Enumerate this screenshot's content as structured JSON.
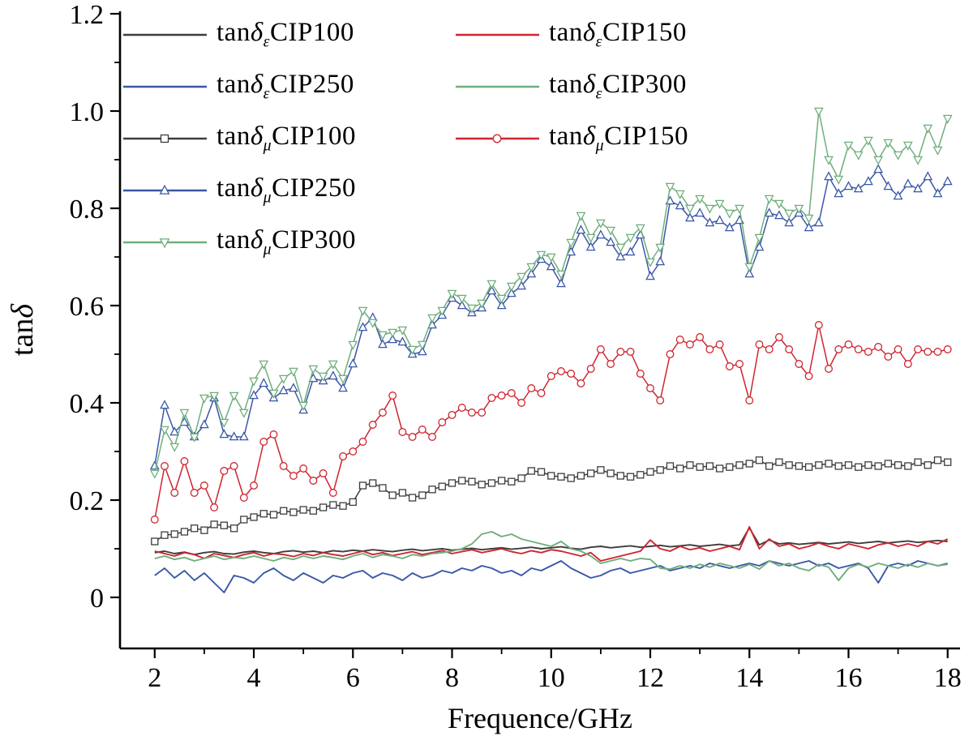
{
  "chart_data": {
    "type": "line",
    "title": "",
    "xlabel": "Frequence/GHz",
    "ylabel_prefix": "tan",
    "ylabel_symbol": "δ",
    "legend_prefix": "tan",
    "legend_position": "top-left",
    "grid": false,
    "x_start": 2,
    "x_step": 0.2,
    "xlim": [
      1.3,
      18.25
    ],
    "ylim": [
      -0.105,
      1.205
    ],
    "xticks": [
      2,
      4,
      6,
      8,
      10,
      12,
      14,
      16,
      18
    ],
    "yticks": [
      0,
      0.2,
      0.4,
      0.6,
      0.8,
      1.0,
      1.2
    ],
    "ytick_labels": [
      "0",
      "0.2",
      "0.4",
      "0.6",
      "0.8",
      "1.0",
      "1.2"
    ],
    "axis_color": "#000000",
    "series": [
      {
        "id": "eps-cip100",
        "delta": "δ",
        "sub": "ε",
        "name": "CIP100",
        "color": "#3d3d3d",
        "marker": "none",
        "values": [
          0.092,
          0.095,
          0.09,
          0.093,
          0.088,
          0.092,
          0.094,
          0.09,
          0.089,
          0.093,
          0.095,
          0.092,
          0.09,
          0.094,
          0.096,
          0.093,
          0.095,
          0.092,
          0.096,
          0.094,
          0.097,
          0.095,
          0.098,
          0.096,
          0.094,
          0.097,
          0.099,
          0.096,
          0.098,
          0.1,
          0.097,
          0.099,
          0.101,
          0.098,
          0.1,
          0.102,
          0.099,
          0.101,
          0.103,
          0.1,
          0.102,
          0.104,
          0.101,
          0.099,
          0.103,
          0.105,
          0.102,
          0.104,
          0.106,
          0.103,
          0.105,
          0.107,
          0.104,
          0.106,
          0.108,
          0.105,
          0.107,
          0.109,
          0.106,
          0.108,
          0.143,
          0.108,
          0.118,
          0.11,
          0.112,
          0.109,
          0.111,
          0.113,
          0.11,
          0.112,
          0.114,
          0.111,
          0.113,
          0.115,
          0.112,
          0.114,
          0.116,
          0.113,
          0.115,
          0.117,
          0.115
        ]
      },
      {
        "id": "eps-cip150",
        "delta": "δ",
        "sub": "ε",
        "name": "CIP150",
        "color": "#cf2530",
        "marker": "none",
        "values": [
          0.095,
          0.09,
          0.085,
          0.092,
          0.088,
          0.08,
          0.09,
          0.086,
          0.082,
          0.088,
          0.092,
          0.085,
          0.09,
          0.088,
          0.084,
          0.09,
          0.086,
          0.092,
          0.088,
          0.085,
          0.09,
          0.095,
          0.088,
          0.092,
          0.086,
          0.09,
          0.094,
          0.088,
          0.092,
          0.096,
          0.09,
          0.094,
          0.098,
          0.092,
          0.096,
          0.1,
          0.094,
          0.09,
          0.096,
          0.092,
          0.098,
          0.095,
          0.09,
          0.085,
          0.092,
          0.075,
          0.08,
          0.085,
          0.09,
          0.095,
          0.118,
          0.1,
          0.095,
          0.105,
          0.098,
          0.102,
          0.095,
          0.1,
          0.105,
          0.098,
          0.145,
          0.1,
          0.12,
          0.105,
          0.11,
          0.1,
          0.105,
          0.112,
          0.105,
          0.1,
          0.11,
          0.105,
          0.1,
          0.108,
          0.112,
          0.105,
          0.11,
          0.105,
          0.115,
          0.11,
          0.12
        ]
      },
      {
        "id": "eps-cip250",
        "delta": "δ",
        "sub": "ε",
        "name": "CIP250",
        "color": "#3a57a7",
        "marker": "none",
        "values": [
          0.045,
          0.06,
          0.04,
          0.055,
          0.035,
          0.05,
          0.03,
          0.01,
          0.045,
          0.04,
          0.03,
          0.05,
          0.06,
          0.045,
          0.035,
          0.05,
          0.04,
          0.03,
          0.045,
          0.04,
          0.05,
          0.055,
          0.04,
          0.05,
          0.045,
          0.035,
          0.05,
          0.04,
          0.045,
          0.055,
          0.05,
          0.06,
          0.055,
          0.065,
          0.06,
          0.05,
          0.055,
          0.045,
          0.06,
          0.055,
          0.065,
          0.075,
          0.06,
          0.05,
          0.04,
          0.045,
          0.055,
          0.06,
          0.05,
          0.055,
          0.06,
          0.065,
          0.055,
          0.06,
          0.065,
          0.06,
          0.07,
          0.065,
          0.06,
          0.065,
          0.07,
          0.065,
          0.075,
          0.07,
          0.065,
          0.07,
          0.075,
          0.065,
          0.07,
          0.06,
          0.065,
          0.07,
          0.06,
          0.03,
          0.065,
          0.07,
          0.065,
          0.075,
          0.07,
          0.065,
          0.07
        ]
      },
      {
        "id": "eps-cip300",
        "delta": "δ",
        "sub": "ε",
        "name": "CIP300",
        "color": "#6fae7c",
        "marker": "none",
        "values": [
          0.08,
          0.085,
          0.078,
          0.082,
          0.075,
          0.08,
          0.085,
          0.078,
          0.082,
          0.08,
          0.085,
          0.08,
          0.075,
          0.082,
          0.078,
          0.085,
          0.08,
          0.085,
          0.082,
          0.078,
          0.085,
          0.09,
          0.082,
          0.088,
          0.085,
          0.08,
          0.088,
          0.085,
          0.09,
          0.092,
          0.095,
          0.1,
          0.11,
          0.13,
          0.135,
          0.125,
          0.13,
          0.12,
          0.115,
          0.11,
          0.105,
          0.115,
          0.1,
          0.095,
          0.085,
          0.07,
          0.075,
          0.08,
          0.075,
          0.08,
          0.078,
          0.06,
          0.058,
          0.065,
          0.06,
          0.068,
          0.062,
          0.07,
          0.065,
          0.06,
          0.068,
          0.058,
          0.075,
          0.065,
          0.07,
          0.06,
          0.055,
          0.068,
          0.062,
          0.035,
          0.06,
          0.068,
          0.062,
          0.07,
          0.065,
          0.06,
          0.068,
          0.062,
          0.07,
          0.065,
          0.068
        ]
      },
      {
        "id": "mu-cip100",
        "delta": "δ",
        "sub": "μ",
        "name": "CIP100",
        "color": "#3d3d3d",
        "marker": "square",
        "values": [
          0.115,
          0.128,
          0.13,
          0.135,
          0.142,
          0.138,
          0.15,
          0.148,
          0.142,
          0.16,
          0.165,
          0.172,
          0.17,
          0.178,
          0.175,
          0.18,
          0.178,
          0.185,
          0.19,
          0.188,
          0.196,
          0.23,
          0.235,
          0.225,
          0.21,
          0.215,
          0.205,
          0.21,
          0.222,
          0.228,
          0.235,
          0.24,
          0.238,
          0.232,
          0.235,
          0.24,
          0.238,
          0.245,
          0.26,
          0.258,
          0.25,
          0.248,
          0.245,
          0.25,
          0.255,
          0.262,
          0.255,
          0.25,
          0.248,
          0.252,
          0.258,
          0.262,
          0.27,
          0.265,
          0.272,
          0.268,
          0.27,
          0.265,
          0.268,
          0.272,
          0.275,
          0.282,
          0.27,
          0.278,
          0.272,
          0.27,
          0.268,
          0.272,
          0.275,
          0.27,
          0.272,
          0.268,
          0.272,
          0.27,
          0.275,
          0.272,
          0.27,
          0.278,
          0.272,
          0.282,
          0.278
        ]
      },
      {
        "id": "mu-cip150",
        "delta": "δ",
        "sub": "μ",
        "name": "CIP150",
        "color": "#cf2530",
        "marker": "circle",
        "values": [
          0.16,
          0.27,
          0.215,
          0.28,
          0.215,
          0.23,
          0.185,
          0.26,
          0.27,
          0.205,
          0.23,
          0.32,
          0.335,
          0.27,
          0.25,
          0.265,
          0.24,
          0.255,
          0.215,
          0.29,
          0.3,
          0.32,
          0.355,
          0.38,
          0.415,
          0.34,
          0.33,
          0.345,
          0.33,
          0.36,
          0.375,
          0.39,
          0.38,
          0.38,
          0.41,
          0.415,
          0.42,
          0.4,
          0.43,
          0.42,
          0.455,
          0.465,
          0.46,
          0.44,
          0.47,
          0.51,
          0.48,
          0.505,
          0.505,
          0.46,
          0.43,
          0.405,
          0.5,
          0.53,
          0.52,
          0.535,
          0.51,
          0.52,
          0.475,
          0.48,
          0.405,
          0.52,
          0.51,
          0.535,
          0.51,
          0.48,
          0.455,
          0.56,
          0.47,
          0.51,
          0.52,
          0.51,
          0.505,
          0.515,
          0.495,
          0.51,
          0.48,
          0.51,
          0.505,
          0.505,
          0.51
        ]
      },
      {
        "id": "mu-cip250",
        "delta": "δ",
        "sub": "μ",
        "name": "CIP250",
        "color": "#3a57a7",
        "marker": "triangle-up",
        "values": [
          0.27,
          0.395,
          0.34,
          0.36,
          0.33,
          0.355,
          0.41,
          0.335,
          0.33,
          0.33,
          0.415,
          0.44,
          0.41,
          0.425,
          0.43,
          0.385,
          0.45,
          0.445,
          0.455,
          0.43,
          0.48,
          0.555,
          0.575,
          0.52,
          0.53,
          0.525,
          0.5,
          0.505,
          0.56,
          0.58,
          0.615,
          0.6,
          0.585,
          0.595,
          0.63,
          0.6,
          0.625,
          0.64,
          0.665,
          0.695,
          0.68,
          0.645,
          0.71,
          0.755,
          0.72,
          0.745,
          0.73,
          0.7,
          0.71,
          0.745,
          0.66,
          0.69,
          0.815,
          0.805,
          0.78,
          0.79,
          0.77,
          0.775,
          0.76,
          0.775,
          0.665,
          0.72,
          0.79,
          0.785,
          0.77,
          0.79,
          0.76,
          0.77,
          0.865,
          0.83,
          0.845,
          0.84,
          0.855,
          0.88,
          0.845,
          0.825,
          0.85,
          0.84,
          0.865,
          0.83,
          0.855
        ]
      },
      {
        "id": "mu-cip300",
        "delta": "δ",
        "sub": "μ",
        "name": "CIP300",
        "color": "#6fae7c",
        "marker": "triangle-down",
        "values": [
          0.255,
          0.345,
          0.31,
          0.38,
          0.33,
          0.41,
          0.415,
          0.36,
          0.415,
          0.38,
          0.445,
          0.48,
          0.42,
          0.45,
          0.465,
          0.395,
          0.47,
          0.455,
          0.48,
          0.45,
          0.52,
          0.59,
          0.565,
          0.54,
          0.545,
          0.55,
          0.51,
          0.52,
          0.575,
          0.59,
          0.625,
          0.615,
          0.595,
          0.605,
          0.645,
          0.615,
          0.64,
          0.66,
          0.68,
          0.705,
          0.7,
          0.665,
          0.73,
          0.785,
          0.74,
          0.77,
          0.755,
          0.72,
          0.74,
          0.76,
          0.69,
          0.72,
          0.845,
          0.83,
          0.8,
          0.82,
          0.8,
          0.81,
          0.79,
          0.8,
          0.68,
          0.74,
          0.82,
          0.81,
          0.79,
          0.8,
          0.78,
          1.0,
          0.9,
          0.86,
          0.93,
          0.91,
          0.94,
          0.9,
          0.935,
          0.91,
          0.93,
          0.9,
          0.965,
          0.92,
          0.985
        ]
      }
    ]
  }
}
